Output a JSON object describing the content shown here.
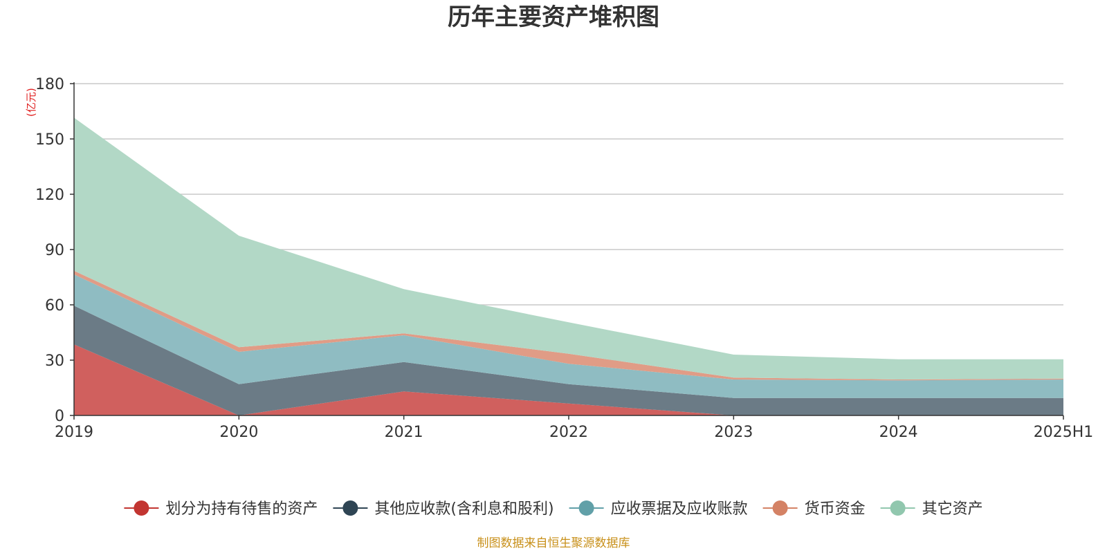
{
  "chart_data": {
    "type": "area",
    "stacked": true,
    "title": "历年主要资产堆积图",
    "unit": "(亿元)",
    "ylim": [
      0,
      180
    ],
    "yticks": [
      0,
      30,
      60,
      90,
      120,
      150,
      180
    ],
    "categories": [
      "2019",
      "2020",
      "2021",
      "2022",
      "2023",
      "2024",
      "2025H1"
    ],
    "series": [
      {
        "name": "划分为持有待售的资产",
        "color": "#d0605e",
        "legend_color": "#c23531",
        "values": [
          38.5,
          0,
          13,
          6.5,
          0,
          0,
          0
        ]
      },
      {
        "name": "其他应收款(含利息和股利)",
        "color": "#6b7b86",
        "legend_color": "#2f4554",
        "values": [
          21,
          17,
          16,
          10.5,
          9.5,
          9.5,
          9.5
        ]
      },
      {
        "name": "应收票据及应收账款",
        "color": "#8fbcc2",
        "legend_color": "#61a0a8",
        "values": [
          17,
          17.5,
          14.5,
          11,
          10,
          9.5,
          10
        ]
      },
      {
        "name": "货币资金",
        "color": "#e09c86",
        "legend_color": "#d48265",
        "values": [
          2,
          2.5,
          1,
          5.5,
          1,
          0.5,
          0.5
        ]
      },
      {
        "name": "其它资产",
        "color": "#b2d8c6",
        "legend_color": "#91c7ae",
        "values": [
          83,
          60.5,
          24,
          17,
          12.5,
          11,
          10.5
        ]
      }
    ],
    "legend_position": "bottom",
    "grid": true
  },
  "source_note": "制图数据来自恒生聚源数据库"
}
